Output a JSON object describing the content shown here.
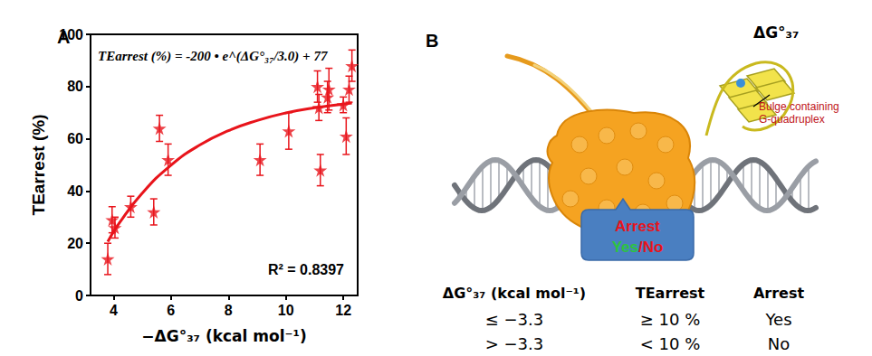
{
  "chart_data": {
    "type": "scatter",
    "title": "A",
    "x_label": "−ΔG°₃₇ (kcal mol⁻¹)",
    "y_label": "TEarrest (%)",
    "xlim": [
      3.2,
      12.5
    ],
    "xticks": [
      4,
      6,
      8,
      10,
      12
    ],
    "ylim": [
      0,
      100
    ],
    "yticks": [
      0,
      20,
      40,
      60,
      80,
      100
    ],
    "grid": false,
    "annotations": [
      "TEarrest (%) = -200 • e^(ΔG°₃₇/3.0) + 77",
      "R² = 0.8397"
    ],
    "series": [
      {
        "type": "scatter",
        "marker": "star",
        "color": "#e8141b",
        "x": [
          3.8,
          3.95,
          4.05,
          4.6,
          5.4,
          5.6,
          5.9,
          9.1,
          10.1,
          11.1,
          11.15,
          11.2,
          11.45,
          11.5,
          12.0,
          12.1,
          12.2,
          12.3
        ],
        "values": [
          14,
          29,
          26,
          34,
          32,
          64,
          52,
          52,
          63,
          80,
          72,
          48,
          76,
          79,
          73,
          61,
          79,
          88
        ],
        "errors": [
          6,
          5,
          4,
          4,
          5,
          5,
          6,
          6,
          7,
          6,
          5,
          6,
          6,
          8,
          3,
          7,
          5,
          6
        ]
      },
      {
        "type": "line",
        "line_style": "solid",
        "color": "#e8141b",
        "x": [
          3.8,
          4.2,
          5.0,
          6.0,
          7.0,
          8.0,
          9.0,
          10.0,
          11.0,
          12.0,
          12.3
        ],
        "values": [
          20.6,
          27.7,
          39.2,
          49.9,
          57.6,
          63.1,
          67.0,
          69.9,
          71.9,
          73.3,
          73.7
        ]
      }
    ]
  },
  "panel_b": {
    "label": "B",
    "energy_label": "ΔG°₃₇",
    "annotation": "Bulge containing G-quadruplex",
    "box": {
      "title": "Arrest",
      "yes": "Yes",
      "separator": "/",
      "no": "No"
    },
    "table": {
      "header": [
        "ΔG°₃₇ (kcal mol⁻¹)",
        "TEarrest",
        "Arrest"
      ],
      "rows": [
        [
          "≤ −3.3",
          "≥ 10 %",
          "Yes"
        ],
        [
          "> −3.3",
          "< 10 %",
          "No"
        ]
      ]
    }
  }
}
